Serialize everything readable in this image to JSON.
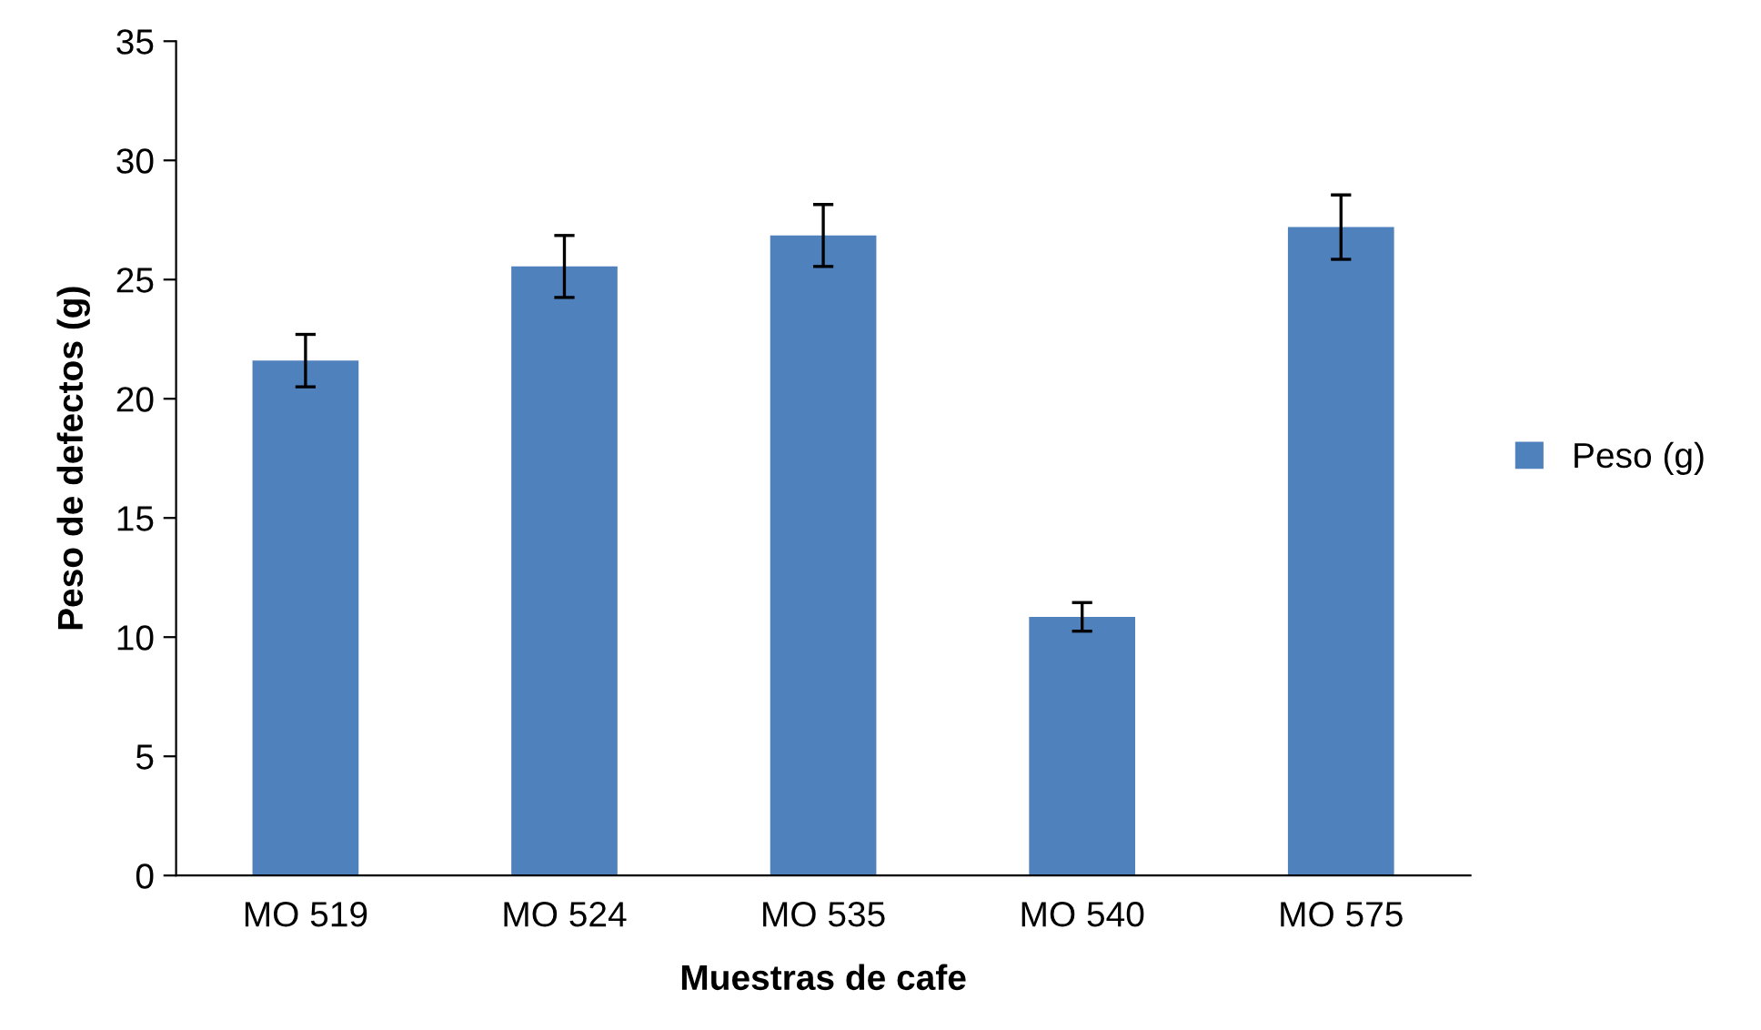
{
  "chart_data": {
    "type": "bar",
    "xlabel": "Muestras de cafe",
    "ylabel": "Peso de defectos (g)",
    "categories": [
      "MO 519",
      "MO 524",
      "MO 535",
      "MO 540",
      "MO 575"
    ],
    "series": [
      {
        "name": "Peso (g)",
        "color": "#4f81bd",
        "values": [
          21.6,
          25.55,
          26.85,
          10.85,
          27.2
        ],
        "errors": [
          1.1,
          1.3,
          1.3,
          0.6,
          1.35
        ]
      }
    ],
    "ylim": [
      0,
      35
    ],
    "yticks": [
      0,
      5,
      10,
      15,
      20,
      25,
      30,
      35
    ],
    "grid": false,
    "legend": "right"
  }
}
